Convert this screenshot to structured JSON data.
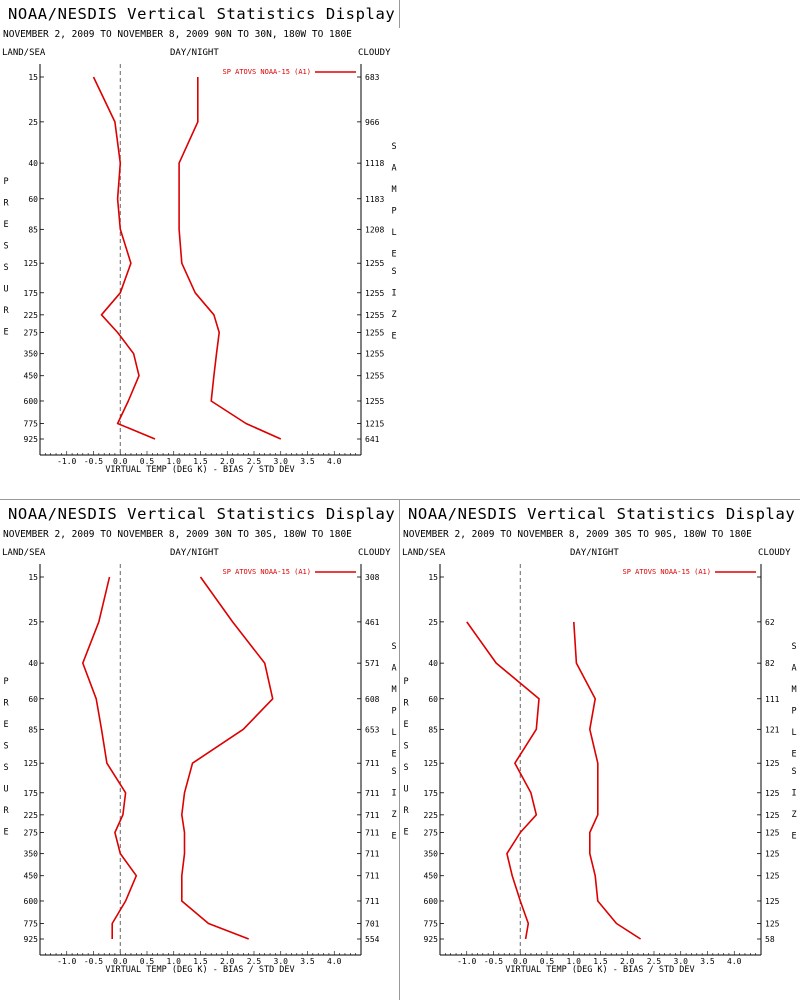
{
  "display_title": "NOAA/NESDIS Vertical Statistics Display",
  "labels": {
    "left": "LAND/SEA",
    "center": "DAY/NIGHT",
    "right": "CLOUDY",
    "ylabel": "PRESSURE",
    "y2label": "SAMPLE SIZE",
    "xlabel": "VIRTUAL TEMP (DEG K) - BIAS / STD DEV"
  },
  "colors": {
    "series": "#dd0000",
    "axis": "#000000",
    "zero_line": "#555555"
  },
  "chart_data": [
    {
      "type": "line",
      "title": "NOAA/NESDIS Vertical Statistics Display",
      "subtitle": "NOVEMBER 2, 2009 TO NOVEMBER 8, 2009 90N TO 30N, 180W TO 180E",
      "xlabel": "VIRTUAL TEMP (DEG K) - BIAS / STD DEV",
      "ylabel": "PRESSURE",
      "y2label": "SAMPLE SIZE",
      "legend": "SP ATOVS NOAA-15 (A1)",
      "xlim": [
        -1.5,
        4.5
      ],
      "xticks": [
        "-1.0",
        "-0.5",
        "0.0",
        "0.5",
        "1.0",
        "1.5",
        "2.0",
        "2.5",
        "3.0",
        "3.5",
        "4.0"
      ],
      "pressure": [
        "15",
        "25",
        "40",
        "60",
        "85",
        "125",
        "175",
        "225",
        "275",
        "350",
        "450",
        "600",
        "775",
        "925"
      ],
      "sample_size": [
        "683",
        "966",
        "1118",
        "1183",
        "1208",
        "1255",
        "1255",
        "1255",
        "1255",
        "1255",
        "1255",
        "1255",
        "1215",
        "641"
      ],
      "series": [
        {
          "name": "BIAS",
          "values": [
            -0.5,
            -0.1,
            0.0,
            -0.05,
            0.0,
            0.2,
            0.0,
            -0.35,
            -0.05,
            0.25,
            0.35,
            0.15,
            -0.05,
            0.65
          ]
        },
        {
          "name": "STD DEV",
          "values": [
            1.45,
            1.45,
            1.1,
            1.1,
            1.1,
            1.15,
            1.4,
            1.75,
            1.85,
            1.8,
            1.75,
            1.7,
            2.35,
            3.0
          ]
        }
      ]
    },
    {
      "type": "line",
      "title": "NOAA/NESDIS Vertical Statistics Display",
      "subtitle": "NOVEMBER 2, 2009 TO NOVEMBER 8, 2009 30N TO 30S, 180W TO 180E",
      "xlabel": "VIRTUAL TEMP (DEG K) - BIAS / STD DEV",
      "ylabel": "PRESSURE",
      "y2label": "SAMPLE SIZE",
      "legend": "SP ATOVS NOAA-15 (A1)",
      "xlim": [
        -1.5,
        4.5
      ],
      "xticks": [
        "-1.0",
        "-0.5",
        "0.0",
        "0.5",
        "1.0",
        "1.5",
        "2.0",
        "2.5",
        "3.0",
        "3.5",
        "4.0"
      ],
      "pressure": [
        "15",
        "25",
        "40",
        "60",
        "85",
        "125",
        "175",
        "225",
        "275",
        "350",
        "450",
        "600",
        "775",
        "925"
      ],
      "sample_size": [
        "308",
        "461",
        "571",
        "608",
        "653",
        "711",
        "711",
        "711",
        "711",
        "711",
        "711",
        "711",
        "701",
        "554"
      ],
      "series": [
        {
          "name": "BIAS",
          "values": [
            -0.2,
            -0.4,
            -0.7,
            -0.45,
            -0.35,
            -0.25,
            0.1,
            0.05,
            -0.1,
            0.0,
            0.3,
            0.1,
            -0.15,
            -0.15
          ]
        },
        {
          "name": "STD DEV",
          "values": [
            1.5,
            2.1,
            2.7,
            2.85,
            2.3,
            1.35,
            1.2,
            1.15,
            1.2,
            1.2,
            1.15,
            1.15,
            1.65,
            2.4
          ]
        }
      ]
    },
    {
      "type": "line",
      "title": "NOAA/NESDIS Vertical Statistics Display",
      "subtitle": "NOVEMBER 2, 2009 TO NOVEMBER 8, 2009 30S TO 90S, 180W TO 180E",
      "xlabel": "VIRTUAL TEMP (DEG K) - BIAS / STD DEV",
      "ylabel": "PRESSURE",
      "y2label": "SAMPLE SIZE",
      "legend": "SP ATOVS NOAA-15 (A1)",
      "xlim": [
        -1.5,
        4.5
      ],
      "xticks": [
        "-1.0",
        "-0.5",
        "0.0",
        "0.5",
        "1.0",
        "1.5",
        "2.0",
        "2.5",
        "3.0",
        "3.5",
        "4.0"
      ],
      "pressure": [
        "15",
        "25",
        "40",
        "60",
        "85",
        "125",
        "175",
        "225",
        "275",
        "350",
        "450",
        "600",
        "775",
        "925"
      ],
      "sample_size": [
        "",
        "62",
        "82",
        "111",
        "121",
        "125",
        "125",
        "125",
        "125",
        "125",
        "125",
        "125",
        "125",
        "58"
      ],
      "series": [
        {
          "name": "BIAS",
          "values": [
            null,
            -1.0,
            -0.45,
            0.35,
            0.3,
            -0.1,
            0.2,
            0.3,
            0.0,
            -0.25,
            -0.15,
            0.0,
            0.15,
            0.1
          ]
        },
        {
          "name": "STD DEV",
          "values": [
            null,
            1.0,
            1.05,
            1.4,
            1.3,
            1.45,
            1.45,
            1.45,
            1.3,
            1.3,
            1.4,
            1.45,
            1.8,
            2.25
          ]
        }
      ]
    }
  ]
}
